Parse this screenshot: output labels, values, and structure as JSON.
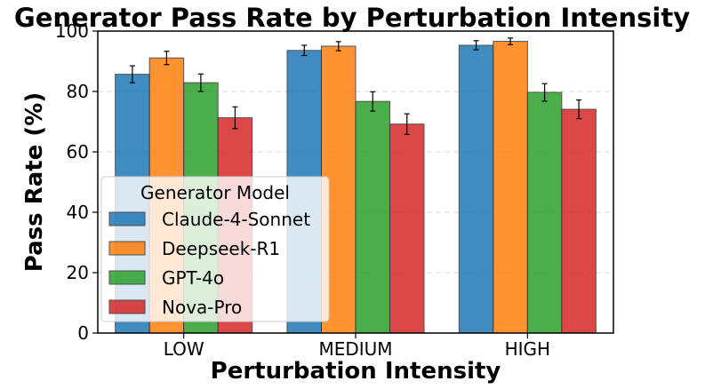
{
  "chart_data": {
    "type": "bar",
    "title": "Generator Pass Rate by Perturbation Intensity",
    "xlabel": "Perturbation Intensity",
    "ylabel": "Pass Rate (%)",
    "ylim": [
      0,
      100
    ],
    "yticks": [
      0,
      20,
      40,
      60,
      80,
      100
    ],
    "grid": true,
    "legend_title": "Generator Model",
    "legend_position": "lower-left",
    "categories": [
      "LOW",
      "MEDIUM",
      "HIGH"
    ],
    "series": [
      {
        "name": "Claude-4-Sonnet",
        "color": "#1f77b4",
        "values": [
          85.7,
          93.6,
          95.3
        ],
        "errors": [
          2.8,
          1.7,
          1.5
        ]
      },
      {
        "name": "Deepseek-R1",
        "color": "#ff7f0e",
        "values": [
          91.1,
          95.0,
          96.6
        ],
        "errors": [
          2.2,
          1.5,
          1.1
        ]
      },
      {
        "name": "GPT-4o",
        "color": "#2ca02c",
        "values": [
          82.9,
          76.7,
          79.7
        ],
        "errors": [
          2.9,
          3.2,
          2.9
        ]
      },
      {
        "name": "Nova-Pro",
        "color": "#d62728",
        "values": [
          71.3,
          69.2,
          74.1
        ],
        "errors": [
          3.6,
          3.4,
          3.1
        ]
      }
    ]
  }
}
